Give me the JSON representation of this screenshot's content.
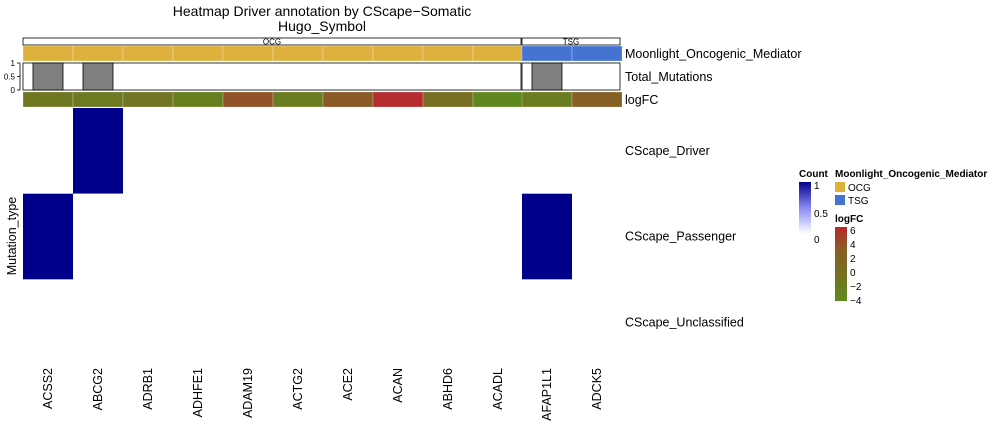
{
  "chart_data": {
    "type": "heatmap",
    "title": "Heatmap Driver annotation by CScape−Somatic",
    "subtitle": "Hugo_Symbol",
    "ylabel": "Mutation_type",
    "groups": [
      {
        "name": "OCG",
        "columns": [
          "ACSS2",
          "ABCG2",
          "ADRB1",
          "ADHFE1",
          "ADAM19",
          "ACTG2",
          "ACE2",
          "ACAN",
          "ABHD6",
          "ACADL"
        ]
      },
      {
        "name": "TSG",
        "columns": [
          "AFAP1L1",
          "ADCK5"
        ]
      }
    ],
    "columns": [
      "ACSS2",
      "ABCG2",
      "ADRB1",
      "ADHFE1",
      "ADAM19",
      "ACTG2",
      "ACE2",
      "ACAN",
      "ABHD6",
      "ACADL",
      "AFAP1L1",
      "ADCK5"
    ],
    "rows": [
      "CScape_Driver",
      "CScape_Passenger",
      "CScape_Unclassified"
    ],
    "values": [
      [
        0,
        1,
        0,
        0,
        0,
        0,
        0,
        0,
        0,
        0,
        0,
        0
      ],
      [
        1,
        0,
        0,
        0,
        0,
        0,
        0,
        0,
        0,
        0,
        1,
        0
      ],
      [
        0,
        0,
        0,
        0,
        0,
        0,
        0,
        0,
        0,
        0,
        0,
        0
      ]
    ],
    "annotations": {
      "moonlight": {
        "name": "Moonlight_Oncogenic_Mediator",
        "values": [
          "OCG",
          "OCG",
          "OCG",
          "OCG",
          "OCG",
          "OCG",
          "OCG",
          "OCG",
          "OCG",
          "OCG",
          "TSG",
          "TSG"
        ]
      },
      "total_mutations": {
        "name": "Total_Mutations",
        "values": [
          1,
          1,
          0,
          0,
          0,
          0,
          0,
          0,
          0,
          0,
          1,
          0
        ],
        "ticks": [
          "1",
          "0.5",
          "0"
        ],
        "ylim": [
          0,
          1
        ]
      },
      "logfc": {
        "name": "logFC",
        "values": [
          -2.2,
          -2.6,
          -2.0,
          -3.2,
          1.8,
          -3.0,
          1.2,
          5.6,
          -1.2,
          -4.4,
          -3.0,
          0.6
        ]
      }
    },
    "legends": {
      "count": {
        "title": "Count",
        "labels": [
          "1",
          "0.5",
          "0"
        ],
        "range": [
          0,
          1
        ]
      },
      "moonlight": {
        "title": "Moonlight_Oncogenic_Mediator",
        "labels": [
          "OCG",
          "TSG"
        ]
      },
      "logfc": {
        "title": "logFC",
        "labels": [
          "6",
          "4",
          "2",
          "0",
          "−2",
          "−4"
        ],
        "range": [
          -4.5,
          6.5
        ]
      }
    },
    "legend_position": "right"
  },
  "colors": {
    "ocg": "#DEB13C",
    "tsg": "#4573D2",
    "count_high": "#00008B",
    "count_mid": "#8A8AF5",
    "count_low": "#FFFFFF",
    "logfc_high": "#B8282E",
    "logfc_mid": "#875E25",
    "logfc_low": "#5E8A1E",
    "bar_fill": "#808080"
  }
}
